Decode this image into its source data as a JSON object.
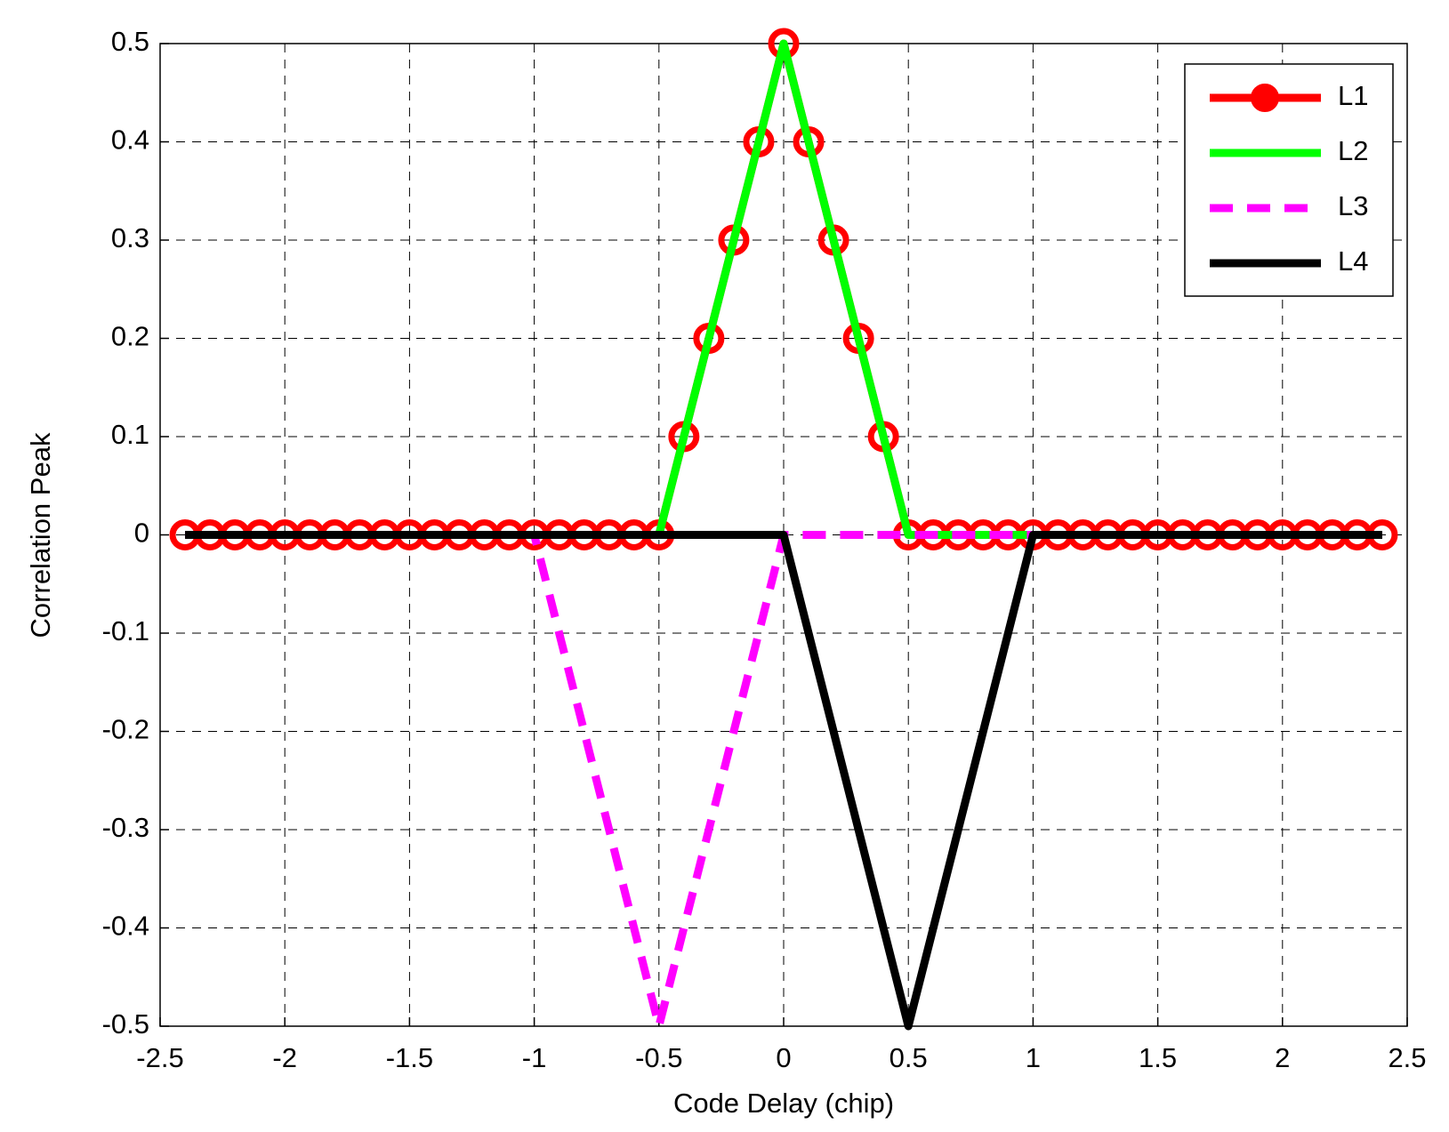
{
  "chart_data": {
    "type": "line",
    "xlabel": "Code Delay (chip)",
    "ylabel": "Correlation Peak",
    "x": [
      -2.4,
      -2.3,
      -2.2,
      -2.1,
      -2,
      -1.9,
      -1.8,
      -1.7,
      -1.6,
      -1.5,
      -1.4,
      -1.3,
      -1.2,
      -1.1,
      -1,
      -0.9,
      -0.8,
      -0.7,
      -0.6,
      -0.5,
      -0.4,
      -0.3,
      -0.2,
      -0.1,
      0,
      0.1,
      0.2,
      0.3,
      0.4,
      0.5,
      0.6,
      0.7,
      0.8,
      0.9,
      1,
      1.1,
      1.2,
      1.3,
      1.4,
      1.5,
      1.6,
      1.7,
      1.8,
      1.9,
      2,
      2.1,
      2.2,
      2.3,
      2.4
    ],
    "series": [
      {
        "name": "L1",
        "color": "#ff0000",
        "marker": "o",
        "linestyle": "solid",
        "values": [
          0,
          0,
          0,
          0,
          0,
          0,
          0,
          0,
          0,
          0,
          0,
          0,
          0,
          0,
          0,
          0,
          0,
          0,
          0,
          0,
          0.1,
          0.2,
          0.3,
          0.4,
          0.5,
          0.4,
          0.3,
          0.2,
          0.1,
          0,
          0,
          0,
          0,
          0,
          0,
          0,
          0,
          0,
          0,
          0,
          0,
          0,
          0,
          0,
          0,
          0,
          0,
          0,
          0
        ]
      },
      {
        "name": "L2",
        "color": "#00ff00",
        "marker": "none",
        "linestyle": "solid",
        "values": [
          0,
          0,
          0,
          0,
          0,
          0,
          0,
          0,
          0,
          0,
          0,
          0,
          0,
          0,
          0,
          0,
          0,
          0,
          0,
          0,
          0.1,
          0.2,
          0.3,
          0.4,
          0.5,
          0.4,
          0.3,
          0.2,
          0.1,
          0,
          0,
          0,
          0,
          0,
          0,
          0,
          0,
          0,
          0,
          0,
          0,
          0,
          0,
          0,
          0,
          0,
          0,
          0,
          0
        ]
      },
      {
        "name": "L3",
        "color": "#ff00ff",
        "marker": "none",
        "linestyle": "dashed",
        "values": [
          0,
          0,
          0,
          0,
          0,
          0,
          0,
          0,
          0,
          0,
          0,
          0,
          0,
          0,
          0,
          -0.1,
          -0.2,
          -0.3,
          -0.4,
          -0.5,
          -0.4,
          -0.3,
          -0.2,
          -0.1,
          0,
          0,
          0,
          0,
          0,
          0,
          0,
          0,
          0,
          0,
          0,
          0,
          0,
          0,
          0,
          0,
          0,
          0,
          0,
          0,
          0,
          0,
          0,
          0,
          0
        ]
      },
      {
        "name": "L4",
        "color": "#000000",
        "marker": "none",
        "linestyle": "solid",
        "values": [
          0,
          0,
          0,
          0,
          0,
          0,
          0,
          0,
          0,
          0,
          0,
          0,
          0,
          0,
          0,
          0,
          0,
          0,
          0,
          0,
          0,
          0,
          0,
          0,
          0,
          -0.1,
          -0.2,
          -0.3,
          -0.4,
          -0.5,
          -0.4,
          -0.3,
          -0.2,
          -0.1,
          0,
          0,
          0,
          0,
          0,
          0,
          0,
          0,
          0,
          0,
          0,
          0,
          0,
          0,
          0
        ]
      }
    ],
    "xlim": [
      -2.5,
      2.5
    ],
    "xticks": [
      -2.5,
      -2,
      -1.5,
      -1,
      -0.5,
      0,
      0.5,
      1,
      1.5,
      2,
      2.5
    ],
    "ylim": [
      -0.5,
      0.5
    ],
    "yticks": [
      -0.5,
      -0.4,
      -0.3,
      -0.2,
      -0.1,
      0,
      0.1,
      0.2,
      0.3,
      0.4,
      0.5
    ],
    "grid": true,
    "legend": "upper right"
  }
}
